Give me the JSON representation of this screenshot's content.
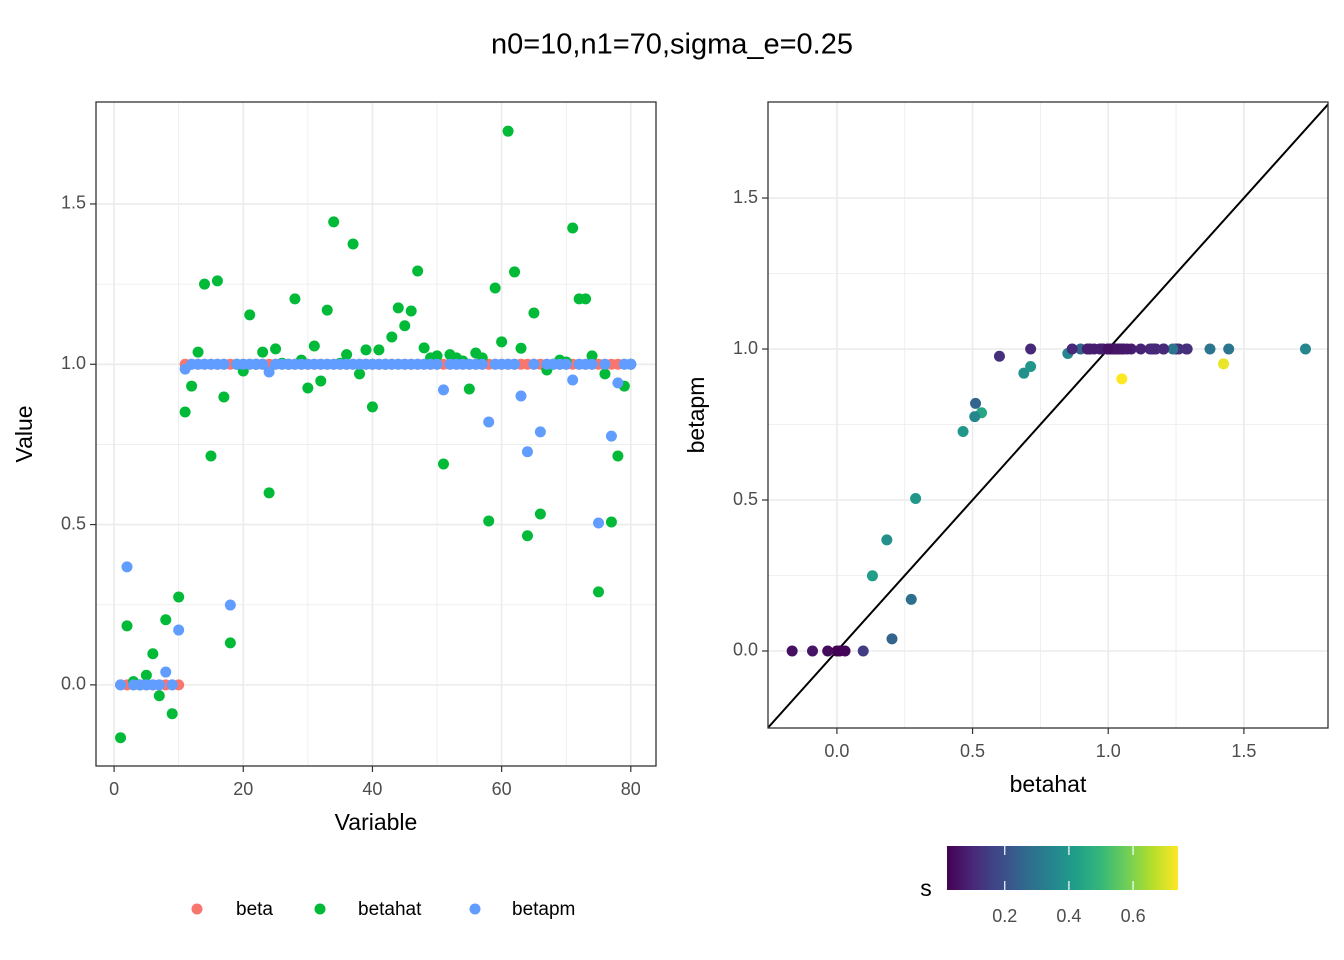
{
  "title": "n0=10,n1=70,sigma_e=0.25",
  "chart_data": [
    {
      "type": "scatter",
      "xlabel": "Variable",
      "ylabel": "Value",
      "x": [
        1,
        2,
        3,
        4,
        5,
        6,
        7,
        8,
        9,
        10,
        11,
        12,
        13,
        14,
        15,
        16,
        17,
        18,
        19,
        20,
        21,
        22,
        23,
        24,
        25,
        26,
        27,
        28,
        29,
        30,
        31,
        32,
        33,
        34,
        35,
        36,
        37,
        38,
        39,
        40,
        41,
        42,
        43,
        44,
        45,
        46,
        47,
        48,
        49,
        50,
        51,
        52,
        53,
        54,
        55,
        56,
        57,
        58,
        59,
        60,
        61,
        62,
        63,
        64,
        65,
        66,
        67,
        68,
        69,
        70,
        71,
        72,
        73,
        74,
        75,
        76,
        77,
        78,
        79,
        80
      ],
      "series": [
        {
          "name": "beta",
          "color": "#F8766D",
          "values": [
            0,
            0,
            0,
            0,
            0,
            0,
            0,
            0,
            0,
            0,
            1,
            1,
            1,
            1,
            1,
            1,
            1,
            1,
            1,
            1,
            1,
            1,
            1,
            1,
            1,
            1,
            1,
            1,
            1,
            1,
            1,
            1,
            1,
            1,
            1,
            1,
            1,
            1,
            1,
            1,
            1,
            1,
            1,
            1,
            1,
            1,
            1,
            1,
            1,
            1,
            1,
            1,
            1,
            1,
            1,
            1,
            1,
            1,
            1,
            1,
            1,
            1,
            1,
            1,
            1,
            1,
            1,
            1,
            1,
            1,
            1,
            1,
            1,
            1,
            1,
            1,
            1,
            1,
            1,
            1
          ]
        },
        {
          "name": "betahat",
          "color": "#00BA38",
          "values": [
            -0.165,
            0.184,
            0.01,
            0.0,
            0.03,
            0.097,
            -0.034,
            0.203,
            -0.09,
            0.274,
            0.851,
            0.932,
            1.038,
            1.25,
            0.714,
            1.26,
            0.898,
            0.131,
            1.0,
            0.979,
            1.154,
            1.0,
            1.038,
            0.599,
            1.048,
            1.003,
            1.0,
            1.204,
            1.013,
            0.926,
            1.057,
            0.948,
            1.169,
            1.444,
            1.003,
            1.03,
            1.375,
            0.97,
            1.045,
            0.867,
            1.045,
            1.0,
            1.085,
            1.176,
            1.12,
            1.166,
            1.291,
            1.051,
            1.02,
            1.026,
            0.689,
            1.03,
            1.02,
            1.01,
            0.923,
            1.035,
            1.02,
            0.511,
            1.238,
            1.07,
            1.727,
            1.288,
            1.05,
            0.465,
            1.16,
            0.533,
            0.982,
            1.0,
            1.013,
            1.007,
            1.425,
            1.204,
            1.204,
            1.026,
            0.29,
            0.97,
            0.508,
            0.714,
            0.932,
            1.0
          ]
        },
        {
          "name": "betapm",
          "color": "#619CFF",
          "values": [
            0,
            0.368,
            0,
            0,
            0,
            0,
            0,
            0.04,
            0,
            0.171,
            0.985,
            1,
            1,
            1,
            1,
            1,
            1,
            0.249,
            1,
            1,
            1,
            1,
            1,
            0.976,
            1,
            1,
            1,
            1,
            1,
            1,
            1,
            1,
            1,
            1,
            1,
            1,
            1,
            1,
            1,
            1,
            1,
            1,
            1,
            1,
            1,
            1,
            1,
            1,
            1,
            1,
            0.92,
            1,
            1,
            1,
            1,
            1,
            1,
            0.82,
            1,
            1,
            1,
            1,
            0.901,
            0.727,
            1,
            0.789,
            1,
            1,
            1,
            1,
            0.951,
            1,
            1,
            1,
            0.505,
            1,
            0.776,
            0.942,
            1,
            1
          ]
        }
      ],
      "xlim": [
        -2.8,
        83.9
      ],
      "xticks": [
        0,
        20,
        40,
        60,
        80
      ],
      "ylim": [
        -0.253,
        1.818
      ],
      "yticks": [
        {
          "value": 0,
          "label": "0.0"
        },
        0.5,
        {
          "value": 1,
          "label": "1.0"
        },
        1.5
      ],
      "grid": true,
      "minor_grid": true,
      "legend": "bottom"
    },
    {
      "type": "scatter_color",
      "xlabel": "betahat",
      "ylabel": "betapm",
      "x": [
        -0.165,
        0.184,
        0.01,
        0.0,
        0.03,
        0.097,
        -0.034,
        0.203,
        -0.09,
        0.274,
        0.851,
        0.932,
        1.038,
        1.25,
        0.714,
        1.26,
        0.898,
        0.131,
        1.0,
        0.979,
        1.154,
        1.0,
        1.038,
        0.599,
        1.048,
        1.003,
        1.0,
        1.204,
        1.013,
        0.926,
        1.057,
        0.948,
        1.169,
        1.444,
        1.003,
        1.03,
        1.375,
        0.97,
        1.045,
        0.867,
        1.045,
        1.0,
        1.085,
        1.176,
        1.12,
        1.166,
        1.291,
        1.051,
        1.02,
        1.026,
        0.689,
        1.03,
        1.02,
        1.01,
        0.923,
        1.035,
        1.02,
        0.511,
        1.238,
        1.07,
        1.727,
        1.288,
        1.05,
        0.465,
        1.16,
        0.533,
        0.982,
        1.0,
        1.013,
        1.007,
        1.425,
        1.204,
        1.204,
        1.026,
        0.29,
        0.97,
        0.508,
        0.714,
        0.932,
        1.0
      ],
      "values": [
        0,
        0.368,
        0,
        0,
        0,
        0,
        0,
        0.04,
        0,
        0.171,
        0.985,
        1,
        1,
        1,
        1,
        1,
        1,
        0.249,
        1,
        1,
        1,
        1,
        1,
        0.976,
        1,
        1,
        1,
        1,
        1,
        1,
        1,
        1,
        1,
        1,
        1,
        1,
        1,
        1,
        1,
        1,
        1,
        1,
        1,
        1,
        1,
        1,
        1,
        1,
        1,
        1,
        0.92,
        1,
        1,
        1,
        1,
        1,
        1,
        0.82,
        1,
        1,
        1,
        1,
        0.901,
        0.727,
        1,
        0.789,
        1,
        1,
        1,
        1,
        0.951,
        1,
        1,
        1,
        0.505,
        1,
        0.776,
        0.942,
        1,
        1
      ],
      "color_label": "s",
      "color_values": [
        0.05,
        0.38,
        0.03,
        0.02,
        0.03,
        0.15,
        0.04,
        0.25,
        0.06,
        0.28,
        0.35,
        0.1,
        0.08,
        0.1,
        0.1,
        0.12,
        0.25,
        0.42,
        0.06,
        0.08,
        0.1,
        0.06,
        0.08,
        0.12,
        0.07,
        0.06,
        0.05,
        0.1,
        0.06,
        0.08,
        0.07,
        0.08,
        0.1,
        0.3,
        0.06,
        0.07,
        0.3,
        0.08,
        0.07,
        0.1,
        0.07,
        0.05,
        0.08,
        0.1,
        0.09,
        0.1,
        0.12,
        0.07,
        0.06,
        0.06,
        0.38,
        0.06,
        0.06,
        0.05,
        0.08,
        0.07,
        0.06,
        0.25,
        0.3,
        0.07,
        0.35,
        0.12,
        0.74,
        0.4,
        0.1,
        0.45,
        0.07,
        0.05,
        0.06,
        0.06,
        0.72,
        0.4,
        0.1,
        0.06,
        0.4,
        0.08,
        0.35,
        0.4,
        0.08,
        0.05
      ],
      "colorscale": [
        "#440154",
        "#482878",
        "#3e4989",
        "#31688e",
        "#26828e",
        "#1f9e89",
        "#35b779",
        "#6ece58",
        "#b5de2b",
        "#fde725"
      ],
      "colorticks": [
        0.2,
        0.4,
        0.6
      ],
      "abline": {
        "intercept": 0,
        "slope": 1
      },
      "xlim": [
        -0.254,
        1.81
      ],
      "xticks": [
        {
          "value": 0,
          "label": "0.0"
        },
        0.5,
        {
          "value": 1,
          "label": "1.0"
        },
        1.5
      ],
      "ylim": [
        -0.255,
        1.818
      ],
      "yticks": [
        {
          "value": 0,
          "label": "0.0"
        },
        0.5,
        {
          "value": 1,
          "label": "1.0"
        },
        1.5
      ],
      "grid": true,
      "minor_grid": true
    }
  ]
}
